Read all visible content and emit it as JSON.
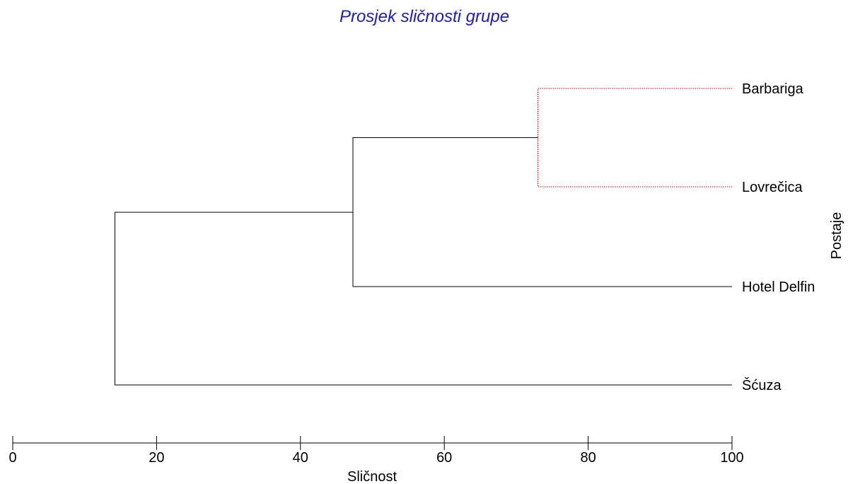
{
  "chart_data": {
    "type": "dendrogram",
    "title": "Prosjek sličnosti grupe",
    "xlabel": "Sličnost",
    "ylabel": "Postaje",
    "xlim": [
      0,
      100
    ],
    "x_ticks": [
      0,
      20,
      40,
      60,
      80,
      100
    ],
    "x_tick_labels": [
      "0",
      "20",
      "40",
      "60",
      "80",
      "100"
    ],
    "leaves": [
      "Barbariga",
      "Lovrečica",
      "Hotel Delfin",
      "Šćuza"
    ],
    "merges": [
      {
        "a": "Barbariga",
        "b": "Lovrečica",
        "similarity": 73.0,
        "style": "dotted-red"
      },
      {
        "a": "Barbariga+Lovrečica",
        "b": "Hotel Delfin",
        "similarity": 47.3,
        "style": "solid-black"
      },
      {
        "a": "Barbariga+Lovrečica+Hotel Delfin",
        "b": "Šćuza",
        "similarity": 14.2,
        "style": "solid-black"
      }
    ],
    "grid": false,
    "colors": {
      "title": "#1a1ad6",
      "line": "#000000",
      "highlight": "#e00000",
      "background": "#ffffff"
    }
  }
}
